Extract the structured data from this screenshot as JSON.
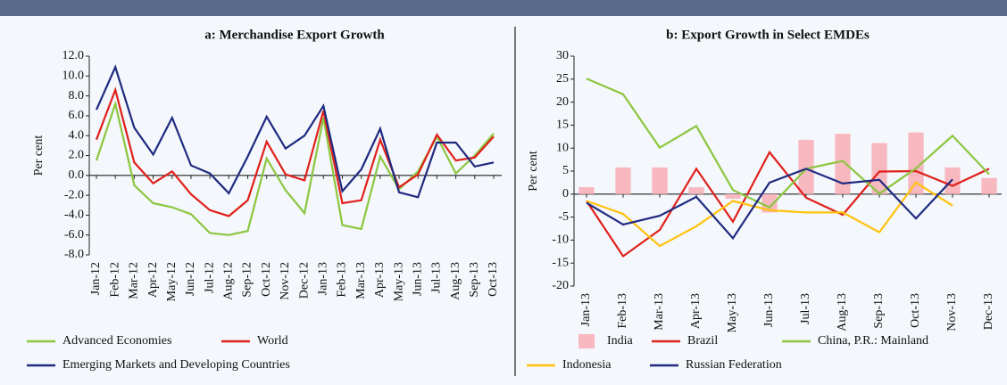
{
  "chart_data": [
    {
      "type": "line",
      "title": "a: Merchandise Export Growth",
      "y_label": "Per cent",
      "categories": [
        "Jan-12",
        "Feb-12",
        "Mar-12",
        "Apr-12",
        "May-12",
        "Jun-12",
        "Jul-12",
        "Aug-12",
        "Sep-12",
        "Oct-12",
        "Nov-12",
        "Dec-12",
        "Jan-13",
        "Feb-13",
        "Mar-13",
        "Apr-13",
        "May-13",
        "Jun-13",
        "Jul-13",
        "Aug-13",
        "Sep-13",
        "Oct-13"
      ],
      "series": [
        {
          "name": "Advanced Economies",
          "color": "#8cc63f",
          "type": "line",
          "values": [
            1.5,
            7.2,
            -1.0,
            -2.8,
            -3.2,
            -3.9,
            -5.8,
            -6.0,
            -5.6,
            1.7,
            -1.5,
            -3.8,
            5.8,
            -5.0,
            -5.4,
            1.9,
            -1.4,
            0.4,
            3.9,
            0.2,
            2.0,
            4.2
          ]
        },
        {
          "name": "World",
          "color": "#e0201b",
          "type": "line",
          "values": [
            3.6,
            8.6,
            1.3,
            -0.8,
            0.4,
            -1.9,
            -3.5,
            -4.1,
            -2.5,
            3.4,
            0.1,
            -0.5,
            6.5,
            -2.8,
            -2.5,
            3.6,
            -1.2,
            0.1,
            4.1,
            1.5,
            1.8,
            3.9
          ]
        },
        {
          "name": "Emerging Markets and Developing Countries",
          "color": "#1f2a80",
          "type": "line",
          "values": [
            6.6,
            10.9,
            4.8,
            2.1,
            5.8,
            1.0,
            0.2,
            -1.8,
            1.9,
            5.9,
            2.7,
            4.0,
            7.0,
            -1.6,
            0.6,
            4.7,
            -1.7,
            -2.2,
            3.3,
            3.3,
            0.9,
            1.3
          ]
        }
      ],
      "ylim": [
        -8,
        12
      ],
      "yticks": [
        {
          "value": 12,
          "label": "12.0"
        },
        {
          "value": 10,
          "label": "10.0"
        },
        {
          "value": 8,
          "label": "8.0"
        },
        {
          "value": 6,
          "label": "6.0"
        },
        {
          "value": 4,
          "label": "4.0"
        },
        {
          "value": 2,
          "label": "2.0"
        },
        {
          "value": 0,
          "label": "0.0"
        },
        {
          "value": -2,
          "label": "-2.0"
        },
        {
          "value": -4,
          "label": "-4.0"
        },
        {
          "value": -6,
          "label": "-6.0"
        },
        {
          "value": -8,
          "label": "-8.0"
        }
      ]
    },
    {
      "type": "combo",
      "title": "b: Export Growth in Select EMDEs",
      "y_label": "Per cent",
      "categories": [
        "Jan-13",
        "Feb-13",
        "Mar-13",
        "Apr-13",
        "May-13",
        "Jun-13",
        "Jul-13",
        "Aug-13",
        "Sep-13",
        "Oct-13",
        "Nov-13",
        "Dec-13"
      ],
      "series": [
        {
          "name": "India",
          "color": "#f7b8c0",
          "type": "bar",
          "values": [
            1.5,
            5.8,
            5.8,
            1.5,
            -1.0,
            -4.0,
            11.8,
            13.1,
            11.1,
            13.4,
            5.8,
            3.5
          ]
        },
        {
          "name": "Brazil",
          "color": "#e0201b",
          "type": "line",
          "values": [
            -1.5,
            -13.5,
            -7.8,
            5.5,
            -6.0,
            9.1,
            -0.8,
            -4.5,
            4.9,
            5.0,
            1.8,
            5.5
          ]
        },
        {
          "name": "China, P.R.: Mainland",
          "color": "#8cc63f",
          "type": "line",
          "values": [
            25.1,
            21.7,
            10.1,
            14.8,
            0.9,
            -2.9,
            5.5,
            7.2,
            0.1,
            5.6,
            12.7,
            4.3
          ]
        },
        {
          "name": "Indonesia",
          "color": "#ffc20e",
          "type": "line",
          "values": [
            -1.5,
            -4.3,
            -11.3,
            -7.0,
            -1.5,
            -3.5,
            -4.0,
            -4.0,
            -8.3,
            2.5,
            -2.5,
            null
          ]
        },
        {
          "name": "Russian Federation",
          "color": "#1f2a80",
          "type": "line",
          "values": [
            -1.9,
            -6.6,
            -4.7,
            -0.6,
            -9.6,
            2.5,
            5.5,
            2.3,
            3.1,
            -5.3,
            3.2,
            null
          ]
        }
      ],
      "ylim": [
        -20,
        30
      ],
      "yticks": [
        30,
        25,
        20,
        15,
        10,
        5,
        0,
        -5,
        -10,
        -15,
        -20
      ]
    }
  ]
}
